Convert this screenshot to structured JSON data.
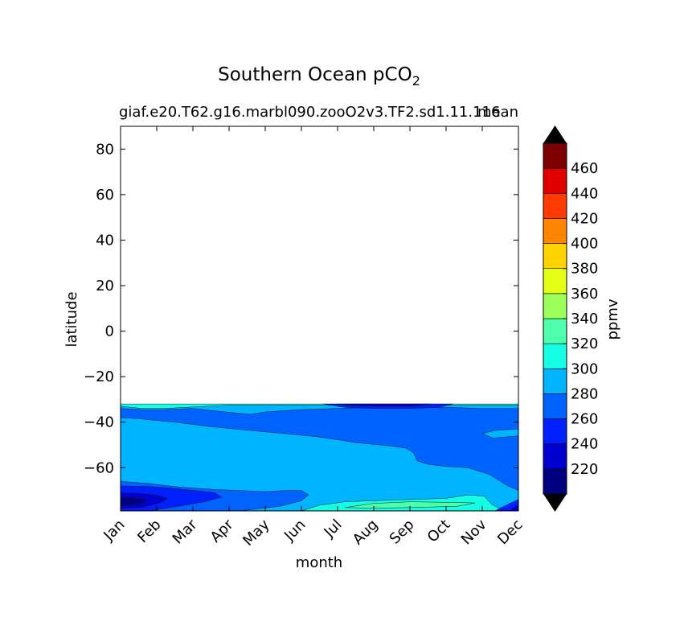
{
  "chart_data": {
    "type": "heatmap",
    "title": "Southern Ocean pCO",
    "title_subscript": "2",
    "subtitle_left": "giaf.e20.T62.g16.marbl090.zooO2v3.TF2.sd1.11.116",
    "subtitle_right": "mean",
    "xlabel": "month",
    "ylabel": "latitude",
    "x_categories": [
      "Jan",
      "Feb",
      "Mar",
      "Apr",
      "May",
      "Jun",
      "Jul",
      "Aug",
      "Sep",
      "Oct",
      "Nov",
      "Dec"
    ],
    "xlim": [
      0,
      11
    ],
    "ylim": [
      -79,
      90
    ],
    "yticks": [
      80,
      60,
      40,
      20,
      0,
      -20,
      -40,
      -60
    ],
    "ytick_labels": [
      "80",
      "60",
      "40",
      "20",
      "0",
      "−20",
      "−40",
      "−60"
    ],
    "data_ymax": -32,
    "colorbar": {
      "label": "ppmv",
      "levels": [
        200,
        220,
        240,
        260,
        280,
        300,
        320,
        340,
        360,
        380,
        400,
        420,
        440,
        460,
        480
      ],
      "tick_labels": [
        "220",
        "240",
        "260",
        "280",
        "300",
        "320",
        "340",
        "360",
        "380",
        "400",
        "420",
        "440",
        "460"
      ],
      "colors": [
        "#000080",
        "#0000d0",
        "#0020ff",
        "#0062ff",
        "#00b4ff",
        "#14ffe3",
        "#4dffaa",
        "#9cff5a",
        "#e3ff14",
        "#ffd300",
        "#ff8500",
        "#ff3a00",
        "#e00000",
        "#7f0000"
      ],
      "extend_low_color": "#000000",
      "extend_high_color": "#000000",
      "extend": "both"
    },
    "contour_regions": [
      {
        "level": 300,
        "color": "#14ffe3",
        "polygon": [
          [
            0,
            -32
          ],
          [
            11,
            -32
          ],
          [
            11,
            -79
          ],
          [
            0,
            -79
          ]
        ]
      },
      {
        "level": 280,
        "color": "#00b4ff",
        "polygon": [
          [
            0,
            -33
          ],
          [
            0.6,
            -34
          ],
          [
            1.2,
            -34
          ],
          [
            1.8,
            -33.5
          ],
          [
            2.4,
            -33
          ],
          [
            3,
            -32.5
          ],
          [
            4,
            -32.5
          ],
          [
            5,
            -32.5
          ],
          [
            6,
            -32.5
          ],
          [
            7,
            -32.5
          ],
          [
            8,
            -32.5
          ],
          [
            9,
            -32.5
          ],
          [
            10,
            -32.5
          ],
          [
            11,
            -32.5
          ],
          [
            11,
            -79
          ],
          [
            0,
            -79
          ]
        ]
      },
      {
        "level": 300,
        "color": "#14ffe3",
        "polygon": [
          [
            5,
            -79
          ],
          [
            5.5,
            -76.5
          ],
          [
            6.2,
            -75
          ],
          [
            7,
            -74.5
          ],
          [
            8,
            -74
          ],
          [
            9,
            -73.5
          ],
          [
            9.6,
            -72
          ],
          [
            10.05,
            -72.5
          ],
          [
            10.25,
            -76
          ],
          [
            10.6,
            -79
          ]
        ]
      },
      {
        "level": 320,
        "color": "#4dffaa",
        "polygon": [
          [
            6.2,
            -77.5
          ],
          [
            7,
            -75.7
          ],
          [
            8,
            -75
          ],
          [
            9,
            -75.2
          ],
          [
            9.8,
            -75.5
          ],
          [
            9.3,
            -77
          ],
          [
            8,
            -77.5
          ],
          [
            7,
            -77.8
          ]
        ]
      },
      {
        "level": 260,
        "color": "#0062ff",
        "polygon": [
          [
            0,
            -34
          ],
          [
            0.6,
            -34.5
          ],
          [
            1.2,
            -34.5
          ],
          [
            2,
            -34
          ],
          [
            2.6,
            -35
          ],
          [
            3.2,
            -36
          ],
          [
            3.6,
            -36.5
          ],
          [
            4,
            -35.5
          ],
          [
            5,
            -34.5
          ],
          [
            6,
            -34
          ],
          [
            7,
            -33.5
          ],
          [
            8,
            -33.5
          ],
          [
            9,
            -33.5
          ],
          [
            10,
            -34
          ],
          [
            11,
            -34
          ],
          [
            11,
            -43
          ],
          [
            10.4,
            -43.5
          ],
          [
            10,
            -45
          ],
          [
            10.3,
            -47
          ],
          [
            11,
            -46
          ],
          [
            11,
            -70
          ],
          [
            10.7,
            -68
          ],
          [
            10.5,
            -66
          ],
          [
            10.2,
            -63
          ],
          [
            9.6,
            -60
          ],
          [
            9,
            -59.5
          ],
          [
            8.5,
            -58.5
          ],
          [
            8.2,
            -57
          ],
          [
            8.1,
            -53.5
          ],
          [
            7.9,
            -51.5
          ],
          [
            7.5,
            -50.5
          ],
          [
            6.5,
            -49
          ],
          [
            5.5,
            -46.5
          ],
          [
            4.5,
            -45
          ],
          [
            3.5,
            -43.5
          ],
          [
            2.5,
            -42
          ],
          [
            1.5,
            -40
          ],
          [
            0.5,
            -38.5
          ],
          [
            0,
            -38
          ]
        ]
      },
      {
        "level": 260,
        "color": "#0062ff",
        "polygon": [
          [
            0,
            -66
          ],
          [
            0.8,
            -67
          ],
          [
            1.6,
            -68.5
          ],
          [
            2.5,
            -69.5
          ],
          [
            3.2,
            -70
          ],
          [
            4,
            -70.5
          ],
          [
            4.6,
            -70
          ],
          [
            5,
            -70
          ],
          [
            5.2,
            -72
          ],
          [
            5,
            -74.5
          ],
          [
            4.4,
            -77
          ],
          [
            3.3,
            -79
          ],
          [
            0,
            -79
          ]
        ]
      },
      {
        "level": 240,
        "color": "#0020ff",
        "polygon": [
          [
            0,
            -68
          ],
          [
            0.8,
            -68.3
          ],
          [
            1.4,
            -69
          ],
          [
            2,
            -70
          ],
          [
            2.6,
            -71
          ],
          [
            2.8,
            -73
          ],
          [
            2.3,
            -75
          ],
          [
            1.6,
            -77
          ],
          [
            0.8,
            -79
          ],
          [
            0,
            -79
          ]
        ]
      },
      {
        "level": 220,
        "color": "#0000d0",
        "polygon": [
          [
            0,
            -71
          ],
          [
            0.5,
            -71.3
          ],
          [
            1,
            -72
          ],
          [
            1.3,
            -73.5
          ],
          [
            1.1,
            -75.5
          ],
          [
            0.6,
            -77.5
          ],
          [
            0,
            -78
          ]
        ]
      },
      {
        "level": 200,
        "color": "#000080",
        "polygon": [
          [
            0,
            -73
          ],
          [
            0.4,
            -73.2
          ],
          [
            0.7,
            -74
          ],
          [
            0.6,
            -75.5
          ],
          [
            0.3,
            -76.5
          ],
          [
            0,
            -76.8
          ]
        ]
      },
      {
        "level": 240,
        "color": "#0020ff",
        "polygon": [
          [
            10.35,
            -79
          ],
          [
            10.6,
            -77
          ],
          [
            10.85,
            -75
          ],
          [
            11,
            -74
          ],
          [
            11,
            -79
          ]
        ]
      },
      {
        "level": 220,
        "color": "#0000d0",
        "polygon": [
          [
            10.75,
            -79
          ],
          [
            10.9,
            -77
          ],
          [
            11,
            -76.5
          ],
          [
            11,
            -79
          ]
        ]
      },
      {
        "level": 240,
        "color": "#0020ff",
        "polygon": [
          [
            5.6,
            -32
          ],
          [
            9.2,
            -32
          ],
          [
            8.8,
            -33.5
          ],
          [
            8,
            -34
          ],
          [
            7,
            -34
          ],
          [
            6.2,
            -33.5
          ]
        ]
      },
      {
        "level": 220,
        "color": "#0000d0",
        "polygon": [
          [
            6,
            -32
          ],
          [
            8.6,
            -32
          ],
          [
            8,
            -33
          ],
          [
            7,
            -33
          ],
          [
            6.4,
            -32.6
          ]
        ]
      }
    ]
  }
}
